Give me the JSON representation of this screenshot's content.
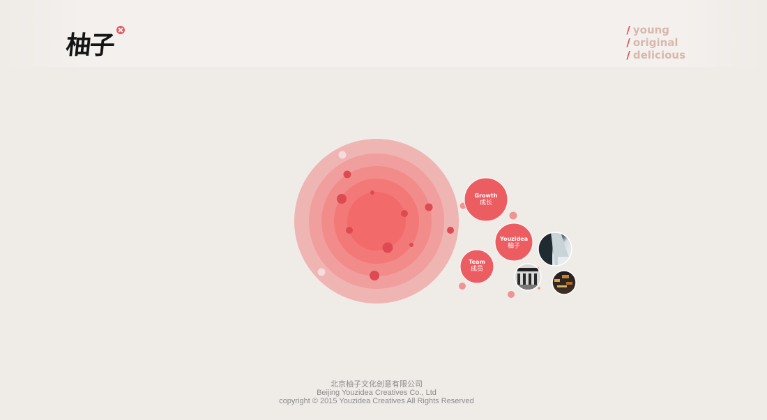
{
  "header": {
    "logo_text": "柚子",
    "tagline": [
      {
        "slash": "/",
        "word": "young"
      },
      {
        "slash": "/",
        "word": "original"
      },
      {
        "slash": "/",
        "word": "delicious"
      }
    ]
  },
  "nav": {
    "growth": {
      "en": "Growth",
      "cn": "成长"
    },
    "youzidea": {
      "en": "Youzidea",
      "cn": "柚子"
    },
    "team": {
      "en": "Team",
      "cn": "成员"
    }
  },
  "footer": {
    "line1": "北京柚子文化创意有限公司",
    "line2": "Beijing Youzidea Creatives Co., Ltd",
    "line3": "copyright © 2015 Youzidea Creatives All Rights Reserved"
  },
  "colors": {
    "background": "#efebe7",
    "accent": "#e4474c",
    "ring_outer": "#efb3b1",
    "ring_core": "#ee6060",
    "bubble": "#ec5d62",
    "tagline_text": "#d9b8ab"
  },
  "icons": {
    "logo_seal": "close-x-seal-icon",
    "photo_1": "waterfall-photo-icon",
    "photo_2": "building-photo-icon",
    "photo_3": "night-city-photo-icon"
  }
}
